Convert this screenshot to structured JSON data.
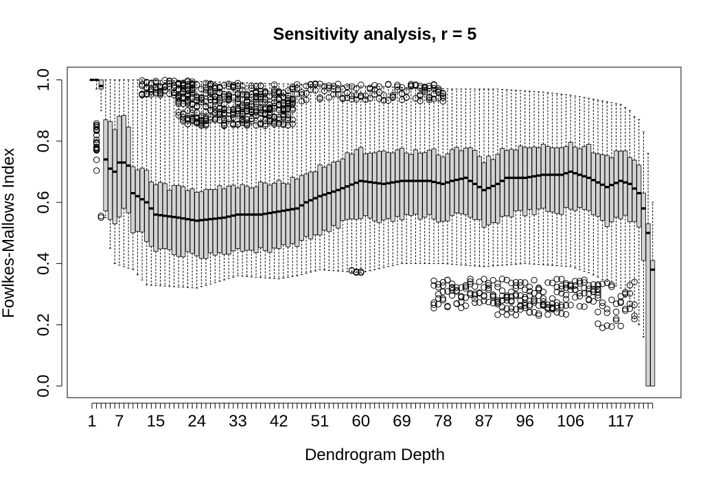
{
  "chart_data": {
    "type": "boxplot",
    "title": "Sensitivity analysis, r = 5",
    "xlabel": "Dendrogram Depth",
    "ylabel": "Fowlkes-Mallows Index",
    "ylim": [
      0,
      1
    ],
    "y_ticks": [
      "0.0",
      "0.2",
      "0.4",
      "0.6",
      "0.8",
      "1.0"
    ],
    "x_count": 124,
    "x_tick_labels": [
      "1",
      "7",
      "15",
      "24",
      "33",
      "42",
      "51",
      "60",
      "69",
      "78",
      "87",
      "96",
      "106",
      "117"
    ],
    "median_anchors": [
      [
        1,
        1.0
      ],
      [
        2,
        1.0
      ],
      [
        3,
        0.98
      ],
      [
        4,
        0.74
      ],
      [
        5,
        0.71
      ],
      [
        6,
        0.7
      ],
      [
        7,
        0.73
      ],
      [
        8,
        0.73
      ],
      [
        9,
        0.72
      ],
      [
        10,
        0.63
      ],
      [
        11,
        0.62
      ],
      [
        13,
        0.6
      ],
      [
        15,
        0.56
      ],
      [
        20,
        0.55
      ],
      [
        24,
        0.54
      ],
      [
        30,
        0.55
      ],
      [
        33,
        0.56
      ],
      [
        38,
        0.56
      ],
      [
        42,
        0.57
      ],
      [
        46,
        0.58
      ],
      [
        48,
        0.6
      ],
      [
        51,
        0.62
      ],
      [
        55,
        0.64
      ],
      [
        60,
        0.67
      ],
      [
        65,
        0.66
      ],
      [
        69,
        0.67
      ],
      [
        75,
        0.67
      ],
      [
        78,
        0.66
      ],
      [
        80,
        0.67
      ],
      [
        83,
        0.68
      ],
      [
        87,
        0.64
      ],
      [
        90,
        0.66
      ],
      [
        92,
        0.68
      ],
      [
        96,
        0.68
      ],
      [
        100,
        0.69
      ],
      [
        104,
        0.69
      ],
      [
        106,
        0.7
      ],
      [
        110,
        0.68
      ],
      [
        114,
        0.65
      ],
      [
        117,
        0.67
      ],
      [
        119,
        0.66
      ],
      [
        121,
        0.63
      ],
      [
        122,
        0.58
      ],
      [
        123,
        0.5
      ],
      [
        124,
        0.38
      ]
    ],
    "whisker_min_anchors": [
      [
        1,
        1.0
      ],
      [
        2,
        0.97
      ],
      [
        3,
        0.9
      ],
      [
        4,
        0.55
      ],
      [
        5,
        0.45
      ],
      [
        6,
        0.4
      ],
      [
        10,
        0.38
      ],
      [
        13,
        0.33
      ],
      [
        24,
        0.32
      ],
      [
        33,
        0.36
      ],
      [
        42,
        0.35
      ],
      [
        46,
        0.36
      ],
      [
        51,
        0.38
      ],
      [
        60,
        0.37
      ],
      [
        69,
        0.4
      ],
      [
        78,
        0.4
      ],
      [
        87,
        0.39
      ],
      [
        96,
        0.4
      ],
      [
        106,
        0.39
      ],
      [
        110,
        0.37
      ],
      [
        117,
        0.32
      ],
      [
        119,
        0.26
      ],
      [
        120,
        0.22
      ],
      [
        121,
        0.2
      ],
      [
        122,
        0.16
      ],
      [
        123,
        0.0
      ],
      [
        124,
        0.0
      ]
    ],
    "whisker_max_anchors": [
      [
        1,
        1.0
      ],
      [
        3,
        1.0
      ],
      [
        12,
        1.0
      ],
      [
        60,
        0.98
      ],
      [
        80,
        0.97
      ],
      [
        90,
        0.97
      ],
      [
        100,
        0.96
      ],
      [
        106,
        0.95
      ],
      [
        110,
        0.94
      ],
      [
        117,
        0.92
      ],
      [
        119,
        0.9
      ],
      [
        120,
        0.88
      ],
      [
        121,
        0.87
      ],
      [
        122,
        0.83
      ],
      [
        123,
        0.76
      ],
      [
        124,
        0.6
      ]
    ],
    "outlier_groups": [
      {
        "from": 2,
        "to": 2,
        "lo": 0.68,
        "hi": 0.86,
        "n": 22
      },
      {
        "from": 3,
        "to": 3,
        "lo": 0.55,
        "hi": 0.56,
        "n": 2
      },
      {
        "from": 12,
        "to": 23,
        "lo": 0.95,
        "hi": 1.0,
        "n": 6
      },
      {
        "from": 20,
        "to": 45,
        "lo": 0.85,
        "hi": 0.99,
        "n": 14
      },
      {
        "from": 46,
        "to": 72,
        "lo": 0.93,
        "hi": 0.99,
        "n": 3
      },
      {
        "from": 73,
        "to": 78,
        "lo": 0.93,
        "hi": 0.99,
        "n": 5
      },
      {
        "from": 58,
        "to": 60,
        "lo": 0.37,
        "hi": 0.38,
        "n": 2
      },
      {
        "from": 76,
        "to": 112,
        "lo": 0.25,
        "hi": 0.35,
        "n": 5
      },
      {
        "from": 90,
        "to": 105,
        "lo": 0.23,
        "hi": 0.28,
        "n": 2
      },
      {
        "from": 112,
        "to": 120,
        "lo": 0.19,
        "hi": 0.34,
        "n": 4
      }
    ]
  }
}
